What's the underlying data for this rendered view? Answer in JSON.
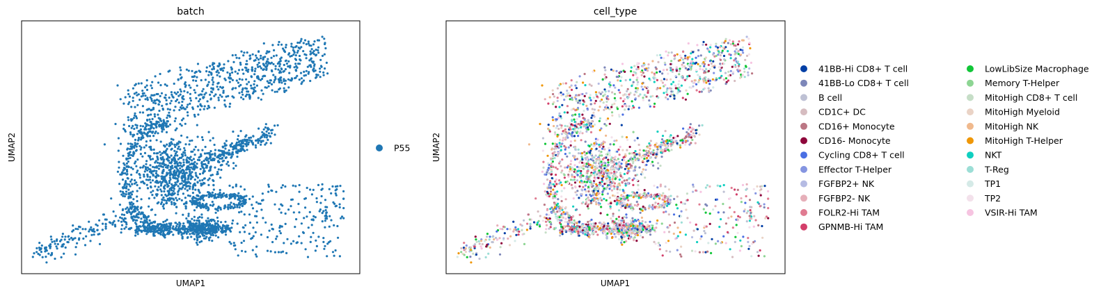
{
  "chart_data": [
    {
      "type": "scatter",
      "title": "batch",
      "xlabel": "UMAP1",
      "ylabel": "UMAP2",
      "grid": false,
      "ticks": false,
      "legend_placement": "right",
      "legend": [
        {
          "label": "P55",
          "color": "#1f77b4"
        }
      ],
      "series_color": "#1f77b4"
    },
    {
      "type": "scatter",
      "title": "cell_type",
      "xlabel": "UMAP1",
      "ylabel": "UMAP2",
      "grid": false,
      "ticks": false,
      "legend_placement": "right",
      "legend": [
        {
          "label": "41BB-Hi CD8+ T cell",
          "color": "#023fa5"
        },
        {
          "label": "41BB-Lo CD8+ T cell",
          "color": "#7d87b9"
        },
        {
          "label": "B cell",
          "color": "#bec1d4"
        },
        {
          "label": "CD1C+ DC",
          "color": "#d6bcc0"
        },
        {
          "label": "CD16+ Monocyte",
          "color": "#bb7784"
        },
        {
          "label": "CD16- Monocyte",
          "color": "#8e063b"
        },
        {
          "label": "Cycling CD8+ T cell",
          "color": "#4a6fe3"
        },
        {
          "label": "Effector T-Helper",
          "color": "#8595e1"
        },
        {
          "label": "FGFBP2+ NK",
          "color": "#b5bbe3"
        },
        {
          "label": "FGFBP2- NK",
          "color": "#e6afb9"
        },
        {
          "label": "FOLR2-Hi TAM",
          "color": "#e07b91"
        },
        {
          "label": "GPNMB-Hi TAM",
          "color": "#d33f6a"
        },
        {
          "label": "LowLibSize Macrophage",
          "color": "#11c638"
        },
        {
          "label": "Memory T-Helper",
          "color": "#8dd593"
        },
        {
          "label": "MitoHigh CD8+ T cell",
          "color": "#c6dec7"
        },
        {
          "label": "MitoHigh Myeloid",
          "color": "#ead3c6"
        },
        {
          "label": "MitoHigh NK",
          "color": "#f0b98d"
        },
        {
          "label": "MitoHigh T-Helper",
          "color": "#ef9708"
        },
        {
          "label": "NKT",
          "color": "#0fcfc0"
        },
        {
          "label": "T-Reg",
          "color": "#9cded6"
        },
        {
          "label": "TP1",
          "color": "#d5eae7"
        },
        {
          "label": "TP2",
          "color": "#f3e1eb"
        },
        {
          "label": "VSIR-Hi TAM",
          "color": "#f6c4e1"
        }
      ]
    }
  ]
}
